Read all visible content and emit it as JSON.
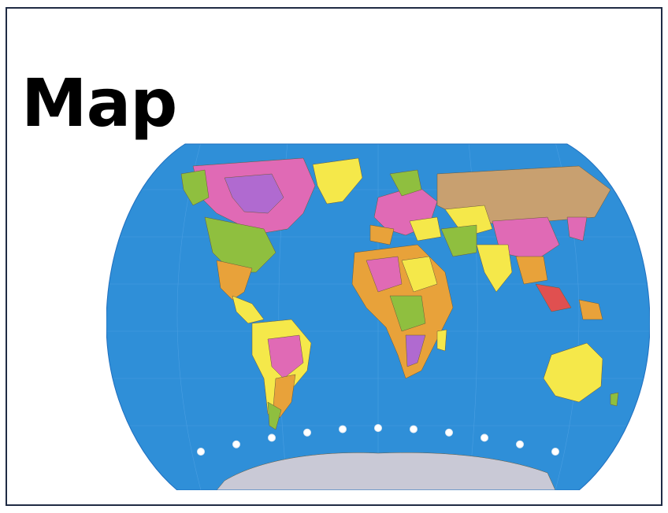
{
  "slide": {
    "title": "Map"
  },
  "map": {
    "type": "world-political-map",
    "projection": "robinson-like",
    "colors": {
      "ocean": "#2f8fd8",
      "ocean_dark": "#1f6fbf",
      "antarctica": "#c9c9d6",
      "yellow": "#f5e84a",
      "pink": "#e06ab5",
      "green": "#8fbf3f",
      "orange": "#e8a23a",
      "purple": "#b06ad0",
      "tan": "#c8a070",
      "red": "#e05050"
    },
    "dots_count": 11
  }
}
